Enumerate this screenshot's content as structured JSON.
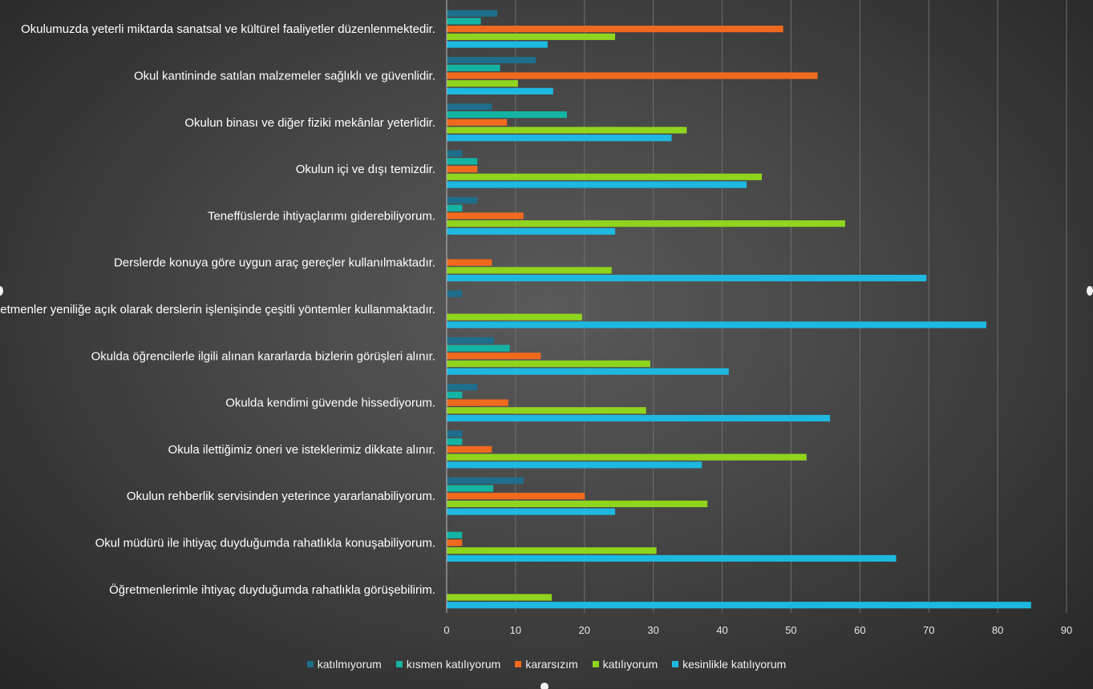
{
  "chart_data": {
    "type": "bar",
    "orientation": "horizontal",
    "categories": [
      "Okulumuzda yeterli miktarda sanatsal ve kültürel faaliyetler düzenlenmektedir.",
      "Okul kantininde satılan malzemeler sağlıklı ve güvenlidir.",
      "Okulun binası ve diğer fiziki mekânlar yeterlidir.",
      "Okulun içi ve dışı temizdir.",
      "Teneffüslerde ihtiyaçlarımı giderebiliyorum.",
      "Derslerde konuya göre uygun araç gereçler kullanılmaktadır.",
      "Öğretmenler yeniliğe açık olarak derslerin işlenişinde çeşitli yöntemler kullanmaktadır.",
      "Okulda öğrencilerle ilgili alınan kararlarda bizlerin görüşleri alınır.",
      "Okulda kendimi güvende hissediyorum.",
      "Okula ilettiğimiz öneri ve isteklerimiz dikkate alınır.",
      "Okulun rehberlik servisinden yeterince yararlanabiliyorum.",
      "Okul müdürü ile ihtiyaç duyduğumda rahatlıkla konuşabiliyorum.",
      "Öğretmenlerimle ihtiyaç duyduğumda rahatlıkla görüşebilirim."
    ],
    "series": [
      {
        "name": "katılmıyorum",
        "color": "#1e6f8c",
        "values": [
          7.3,
          12.9,
          6.5,
          2.2,
          4.4,
          0,
          2.2,
          6.8,
          4.4,
          2.2,
          11.1,
          0,
          0
        ]
      },
      {
        "name": "kısmen katılıyorum",
        "color": "#14b3a3",
        "values": [
          4.9,
          7.7,
          17.4,
          4.4,
          2.2,
          0,
          0,
          9.1,
          2.2,
          2.2,
          6.7,
          2.2,
          0
        ]
      },
      {
        "name": "kararsızım",
        "color": "#f06a1e",
        "values": [
          48.8,
          53.8,
          8.7,
          4.4,
          11.1,
          6.5,
          0,
          13.6,
          8.9,
          6.5,
          20.0,
          2.2,
          0
        ]
      },
      {
        "name": "katılıyorum",
        "color": "#8fd41d",
        "values": [
          24.4,
          10.3,
          34.8,
          45.7,
          57.8,
          23.9,
          19.6,
          29.5,
          28.9,
          52.2,
          37.8,
          30.4,
          15.2
        ]
      },
      {
        "name": "kesinlikle katılıyorum",
        "color": "#1eb8e0",
        "values": [
          14.6,
          15.4,
          32.6,
          43.5,
          24.4,
          69.6,
          78.3,
          40.9,
          55.6,
          37.0,
          24.4,
          65.2,
          84.8
        ]
      }
    ],
    "xlim": [
      0,
      90
    ],
    "x_ticks": [
      "0",
      "10",
      "20",
      "30",
      "40",
      "50",
      "60",
      "70",
      "80",
      "90"
    ],
    "grid": "vertical",
    "legend_position": "bottom"
  }
}
